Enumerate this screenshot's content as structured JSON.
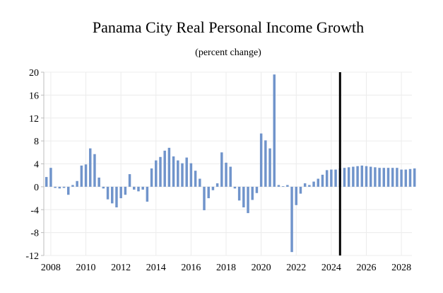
{
  "chart_data": {
    "type": "bar",
    "title": "Panama City Real Personal Income Growth",
    "subtitle": "(percent change)",
    "xlabel": "",
    "ylabel": "",
    "ylim": [
      -12,
      20
    ],
    "yticks": [
      "20",
      "16",
      "12",
      "8",
      "4",
      "0",
      "-4",
      "-8",
      "-12"
    ],
    "xlim": [
      2007.6,
      2028.6
    ],
    "xticks": [
      "2008",
      "2010",
      "2012",
      "2014",
      "2016",
      "2018",
      "2020",
      "2022",
      "2024",
      "2026",
      "2028"
    ],
    "grid": true,
    "forecast_marker_x": 2024.5,
    "bar_color": "#7094cb",
    "series": [
      {
        "name": "Real Personal Income Growth",
        "start_year": 2007.75,
        "step": 0.25,
        "values": [
          1.7,
          3.3,
          -0.2,
          -0.3,
          -0.2,
          -1.4,
          0.3,
          1.0,
          3.7,
          3.9,
          6.7,
          5.7,
          1.6,
          -0.3,
          -2.2,
          -2.9,
          -3.6,
          -2.0,
          -1.4,
          2.2,
          -0.5,
          -0.8,
          -0.5,
          -2.6,
          3.2,
          4.6,
          5.2,
          6.3,
          6.8,
          5.3,
          4.6,
          4.1,
          5.1,
          4.1,
          2.8,
          1.4,
          -4.1,
          -2.0,
          -0.6,
          0.6,
          6.0,
          4.2,
          3.5,
          -0.3,
          -2.4,
          -3.6,
          -4.6,
          -2.3,
          -1.1,
          9.3,
          8.1,
          6.7,
          19.6,
          0.3,
          0.1,
          0.3,
          -11.4,
          -3.2,
          -1.2,
          0.6,
          0.3,
          0.9,
          1.4,
          2.1,
          2.9,
          3.0,
          3.0,
          3.2,
          3.3,
          3.4,
          3.5,
          3.6,
          3.7,
          3.6,
          3.5,
          3.4,
          3.3,
          3.3,
          3.3,
          3.3,
          3.3,
          3.0,
          3.0,
          3.1,
          3.2
        ]
      }
    ]
  }
}
